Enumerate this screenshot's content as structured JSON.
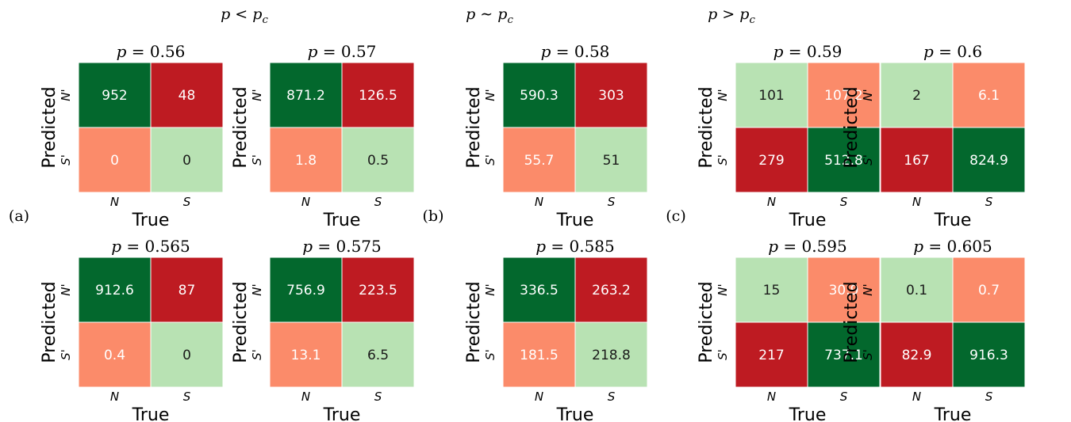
{
  "colors": {
    "dark_green": "#03682d",
    "light_green": "#b8e2b3",
    "dark_red": "#be1b22",
    "light_red": "#fb8b6a",
    "text_dark": "#1a1a1a",
    "text_light": "#ffffff"
  },
  "groups": [
    {
      "label": "(a)",
      "header": "p < p_c"
    },
    {
      "label": "(b)",
      "header": "p ∼ p_c"
    },
    {
      "label": "(c)",
      "header": "p > p_c"
    }
  ],
  "chart_data": [
    {
      "type": "heatmap",
      "title": "p = 0.56",
      "xlabel": "True",
      "ylabel": "Predicted",
      "x_ticks": [
        "N",
        "S"
      ],
      "y_ticks": [
        "N'",
        "S'"
      ],
      "values": [
        [
          952,
          48
        ],
        [
          0,
          0
        ]
      ]
    },
    {
      "type": "heatmap",
      "title": "p = 0.57",
      "xlabel": "True",
      "ylabel": "Predicted",
      "x_ticks": [
        "N",
        "S"
      ],
      "y_ticks": [
        "N'",
        "S'"
      ],
      "values": [
        [
          871.2,
          126.5
        ],
        [
          1.8,
          0.5
        ]
      ]
    },
    {
      "type": "heatmap",
      "title": "p = 0.58",
      "xlabel": "True",
      "ylabel": "Predicted",
      "x_ticks": [
        "N",
        "S"
      ],
      "y_ticks": [
        "N'",
        "S'"
      ],
      "values": [
        [
          590.3,
          303
        ],
        [
          55.7,
          51
        ]
      ]
    },
    {
      "type": "heatmap",
      "title": "p = 0.59",
      "xlabel": "True",
      "ylabel": "Predicted",
      "x_ticks": [
        "N",
        "S"
      ],
      "y_ticks": [
        "N'",
        "S'"
      ],
      "values": [
        [
          101,
          107.2
        ],
        [
          279,
          512.8
        ]
      ]
    },
    {
      "type": "heatmap",
      "title": "p = 0.6",
      "xlabel": "True",
      "ylabel": "Predicted",
      "x_ticks": [
        "N",
        "S"
      ],
      "y_ticks": [
        "N'",
        "S'"
      ],
      "values": [
        [
          2,
          6.1
        ],
        [
          167,
          824.9
        ]
      ]
    },
    {
      "type": "heatmap",
      "title": "p = 0.565",
      "xlabel": "True",
      "ylabel": "Predicted",
      "x_ticks": [
        "N",
        "S"
      ],
      "y_ticks": [
        "N'",
        "S'"
      ],
      "values": [
        [
          912.6,
          87
        ],
        [
          0.4,
          0
        ]
      ]
    },
    {
      "type": "heatmap",
      "title": "p = 0.575",
      "xlabel": "True",
      "ylabel": "Predicted",
      "x_ticks": [
        "N",
        "S"
      ],
      "y_ticks": [
        "N'",
        "S'"
      ],
      "values": [
        [
          756.9,
          223.5
        ],
        [
          13.1,
          6.5
        ]
      ]
    },
    {
      "type": "heatmap",
      "title": "p = 0.585",
      "xlabel": "True",
      "ylabel": "Predicted",
      "x_ticks": [
        "N",
        "S"
      ],
      "y_ticks": [
        "N'",
        "S'"
      ],
      "values": [
        [
          336.5,
          263.2
        ],
        [
          181.5,
          218.8
        ]
      ]
    },
    {
      "type": "heatmap",
      "title": "p = 0.595",
      "xlabel": "True",
      "ylabel": "Predicted",
      "x_ticks": [
        "N",
        "S"
      ],
      "y_ticks": [
        "N'",
        "S'"
      ],
      "values": [
        [
          15,
          30.9
        ],
        [
          217,
          737.1
        ]
      ]
    },
    {
      "type": "heatmap",
      "title": "p = 0.605",
      "xlabel": "True",
      "ylabel": "Predicted",
      "x_ticks": [
        "N",
        "S"
      ],
      "y_ticks": [
        "N'",
        "S'"
      ],
      "values": [
        [
          0.1,
          0.7
        ],
        [
          82.9,
          916.3
        ]
      ]
    }
  ]
}
